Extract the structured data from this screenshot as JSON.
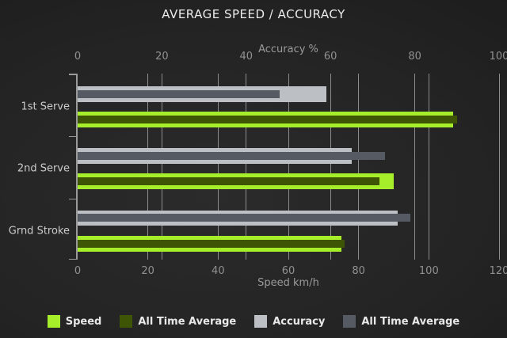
{
  "title": "AVERAGE SPEED / ACCURACY",
  "chart_data": {
    "type": "bar",
    "orientation": "horizontal",
    "title": "AVERAGE SPEED / ACCURACY",
    "categories": [
      "1st Serve",
      "2nd Serve",
      "Grnd Stroke"
    ],
    "top_axis": {
      "label": "Accuracy %",
      "min": 0,
      "max": 100,
      "ticks": [
        0,
        20,
        40,
        60,
        80,
        100
      ]
    },
    "bottom_axis": {
      "label": "Speed km/h",
      "min": 0,
      "max": 120,
      "ticks": [
        0,
        20,
        40,
        60,
        80,
        100,
        120
      ]
    },
    "series": [
      {
        "name": "Speed",
        "axis": "bottom",
        "color": "#a7ee2a",
        "values": [
          107,
          90,
          75
        ]
      },
      {
        "name": "All Time Average",
        "axis": "bottom",
        "color": "#3f5506",
        "values": [
          108,
          86,
          76
        ]
      },
      {
        "name": "Accuracy",
        "axis": "top",
        "color": "#bcc0c4",
        "values": [
          59,
          65,
          76
        ]
      },
      {
        "name": "All Time Average",
        "axis": "top",
        "color": "#565b63",
        "values": [
          48,
          73,
          79
        ]
      }
    ],
    "legend": [
      {
        "label": "Speed",
        "color": "#a7ee2a"
      },
      {
        "label": "All Time Average",
        "color": "#3f5506"
      },
      {
        "label": "Accuracy",
        "color": "#bcc0c4"
      },
      {
        "label": "All Time Average",
        "color": "#565b63"
      }
    ],
    "grid": true,
    "legend_position": "bottom"
  },
  "colors": {
    "background_center": "#2b2b2b",
    "background_edge": "#141414",
    "grid_line": "#8c8c8c",
    "axis_line": "#9a9a9a",
    "tick_label": "#919191",
    "axis_title": "#9a9a9a",
    "category_label": "#cbcbcb",
    "title_text": "#ececec",
    "legend_text": "#e8e8e8"
  }
}
